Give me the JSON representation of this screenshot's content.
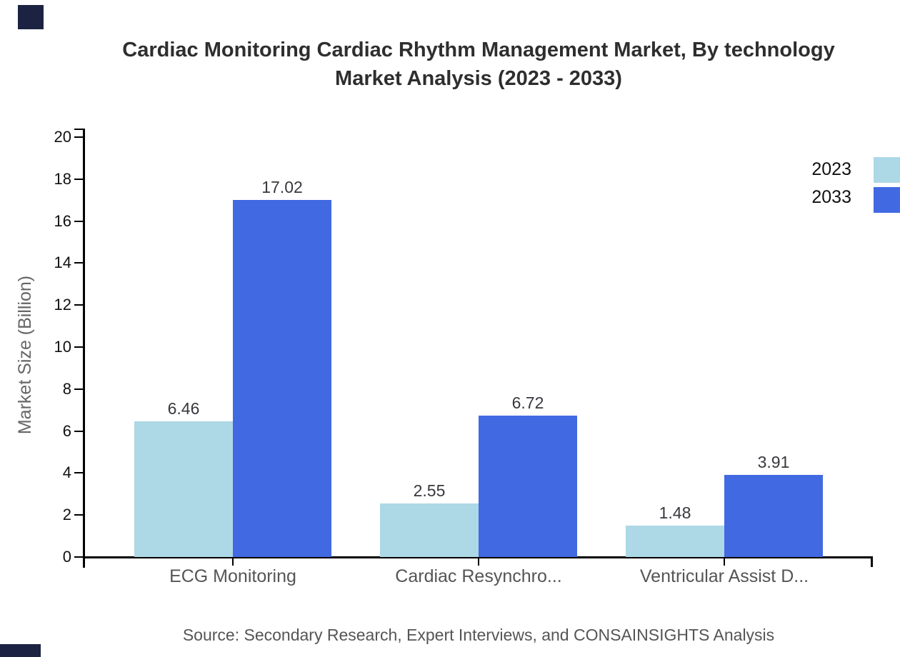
{
  "header": {
    "title_line1": "Cardiac Monitoring Cardiac Rhythm Management Market, By technology",
    "title_line2": "Market Analysis (2023 - 2033)"
  },
  "footer": {
    "source": "Source: Secondary Research, Expert Interviews, and CONSAINSIGHTS Analysis"
  },
  "chart_data": {
    "type": "bar",
    "title": "Cardiac Monitoring Cardiac Rhythm Management Market, By technology Market Analysis (2023 - 2033)",
    "categories": [
      "ECG Monitoring",
      "Cardiac Resynchro...",
      "Ventricular Assist D..."
    ],
    "series": [
      {
        "name": "2023",
        "color": "#ADD8E6",
        "values": [
          6.46,
          2.55,
          1.48
        ]
      },
      {
        "name": "2033",
        "color": "#4169E1",
        "values": [
          17.02,
          6.72,
          3.91
        ]
      }
    ],
    "xlabel": "",
    "ylabel": "Market Size (Billion)",
    "ylim": [
      0,
      20
    ],
    "ytick_step": 2,
    "grid": false,
    "legend_position": "top-right",
    "value_labels": true,
    "value_label_decimals": 2
  },
  "colors": {
    "series_2023": "#ADD8E6",
    "series_2033": "#4169E1",
    "axis": "#000000",
    "watermark": "#1C2342"
  }
}
